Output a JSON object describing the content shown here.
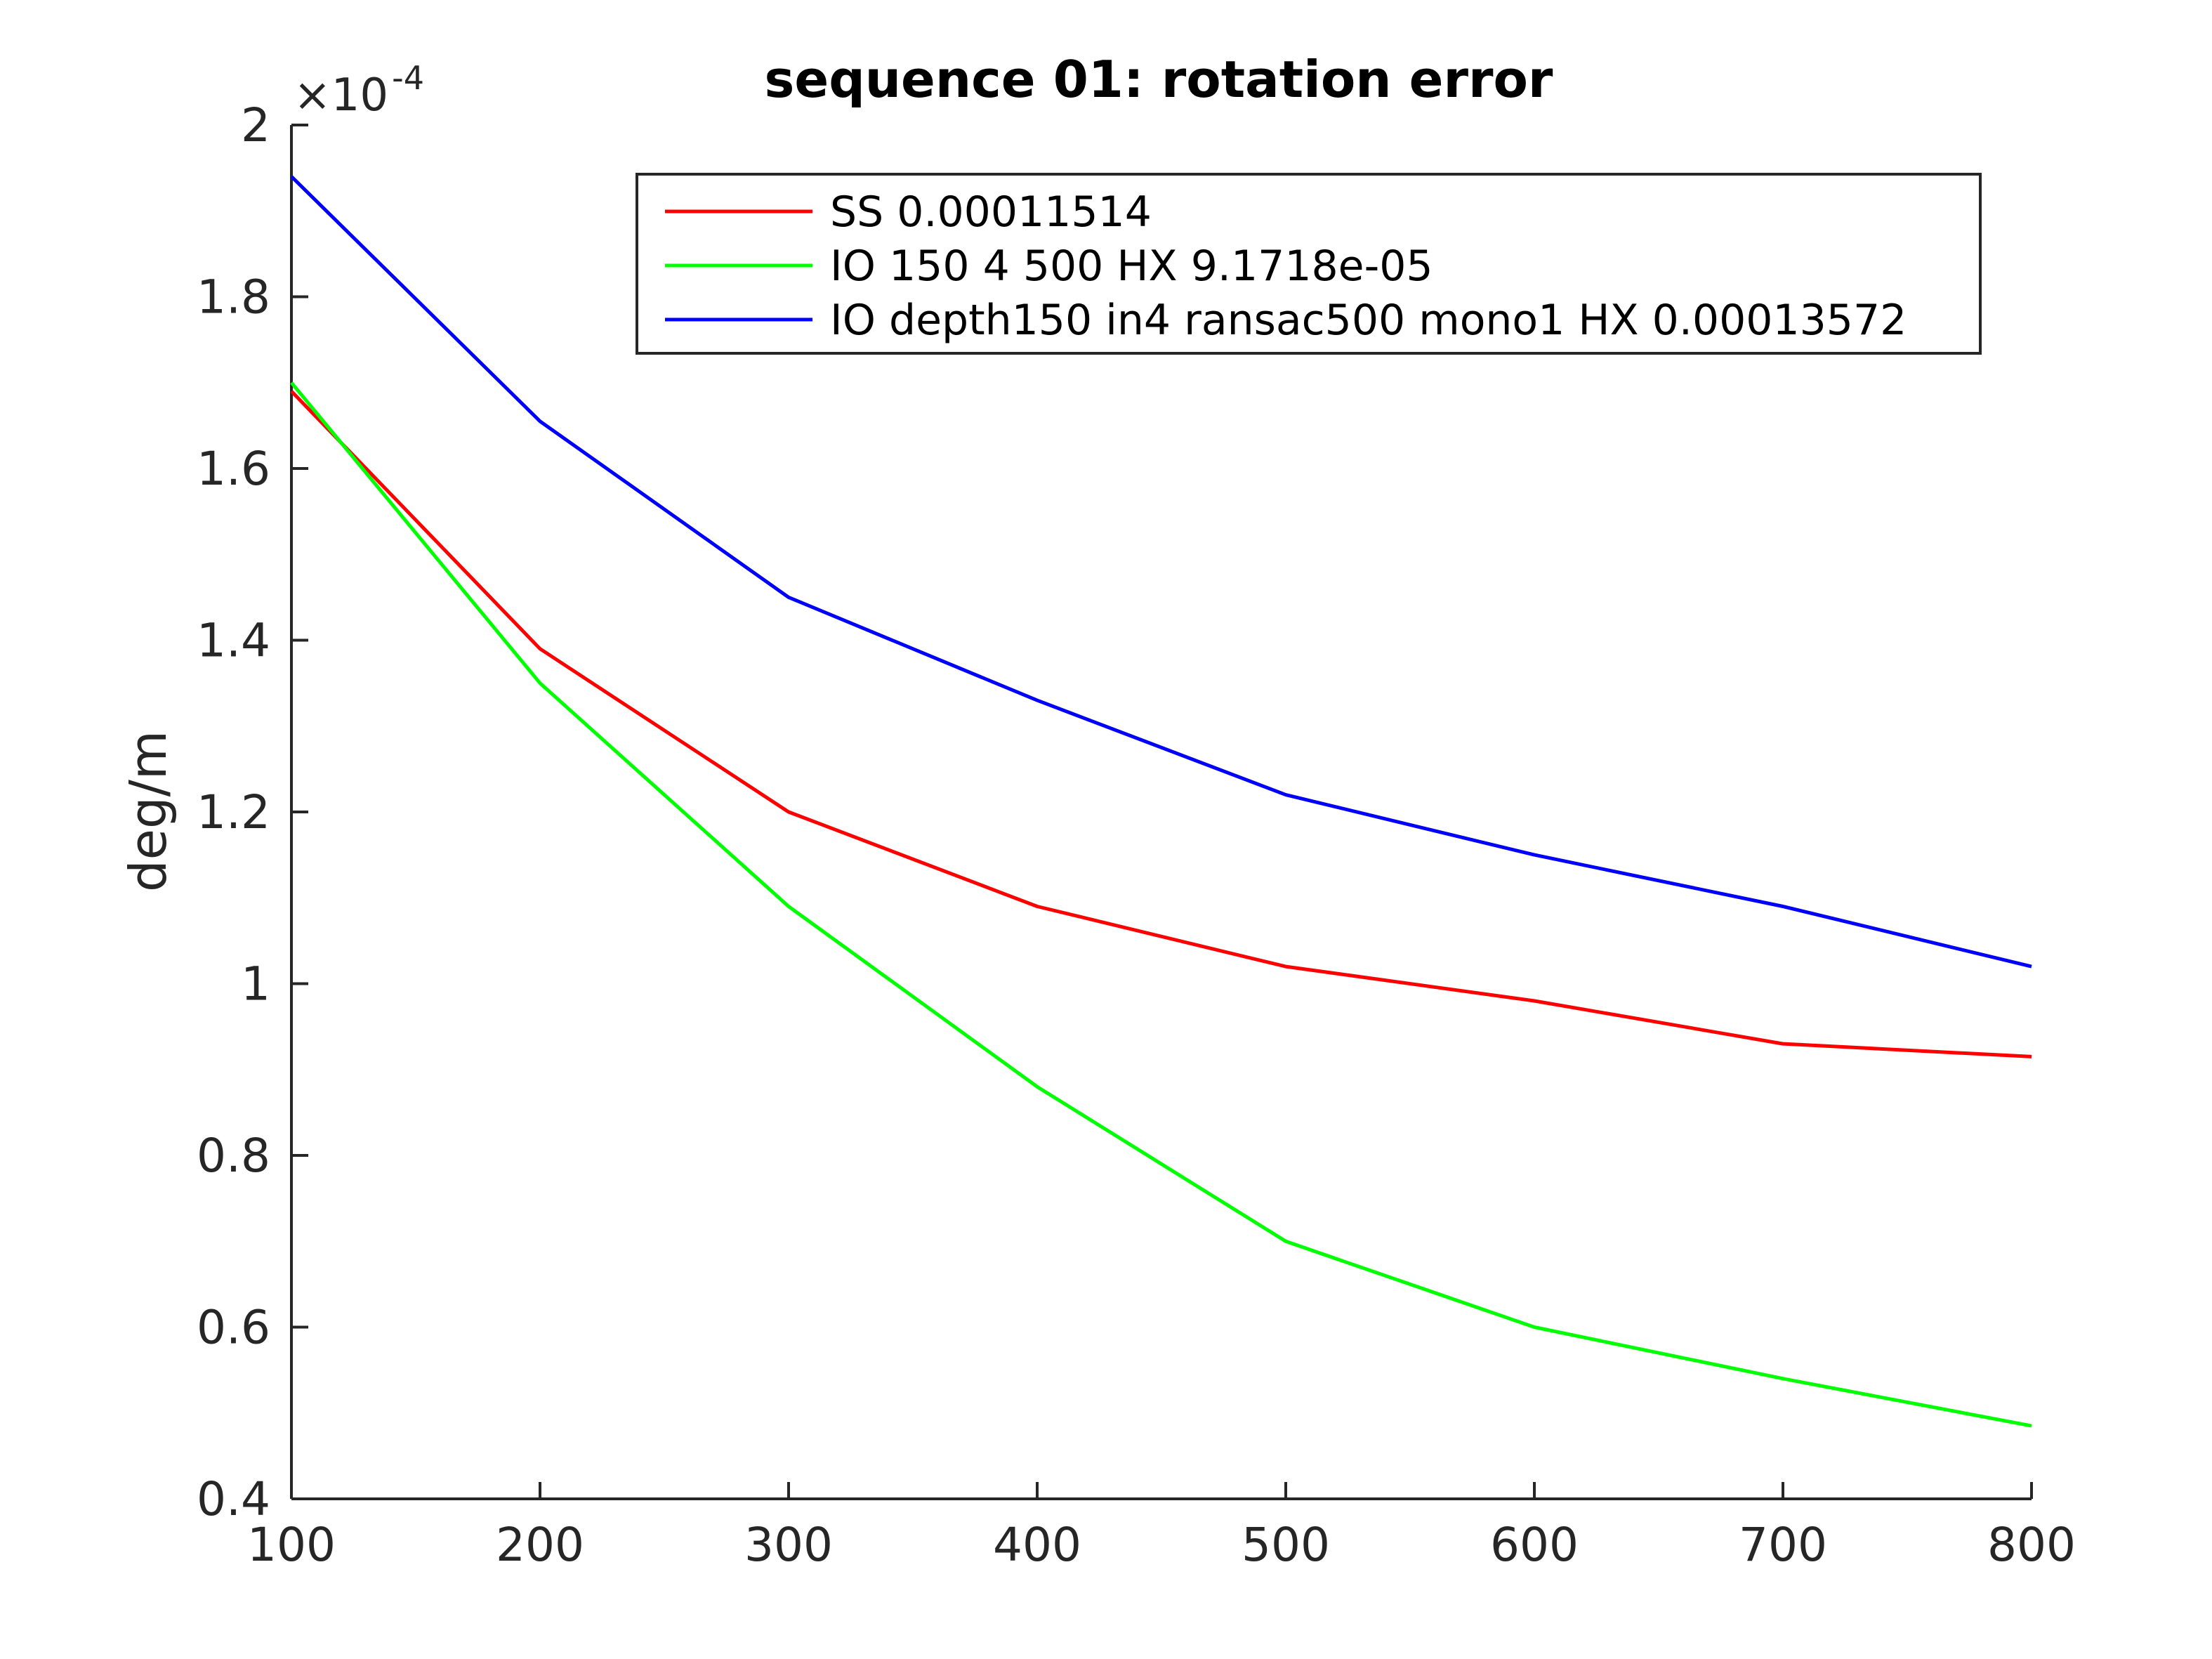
{
  "chart_data": {
    "type": "line",
    "title": "sequence 01: rotation error",
    "xlabel": "",
    "ylabel": "deg/m",
    "y_exponent": {
      "base": "×10",
      "power": "-4"
    },
    "x": [
      100,
      200,
      300,
      400,
      500,
      600,
      700,
      800
    ],
    "xlim": [
      100,
      800
    ],
    "ylim": [
      0.4,
      2.0
    ],
    "xticks": [
      100,
      200,
      300,
      400,
      500,
      600,
      700,
      800
    ],
    "xtick_labels": [
      "100",
      "200",
      "300",
      "400",
      "500",
      "600",
      "700",
      "800"
    ],
    "yticks": [
      0.4,
      0.6,
      0.8,
      1.0,
      1.2,
      1.4,
      1.6,
      1.8,
      2.0
    ],
    "ytick_labels": [
      "0.4",
      "0.6",
      "0.8",
      "1",
      "1.2",
      "1.4",
      "1.6",
      "1.8",
      "2"
    ],
    "grid": false,
    "legend_position": "top-right",
    "series": [
      {
        "name": "SS 0.00011514",
        "color": "#ff0000",
        "values": [
          1.69,
          1.39,
          1.2,
          1.09,
          1.02,
          0.98,
          0.93,
          0.915
        ]
      },
      {
        "name": "IO 150 4 500 HX 9.1718e-05",
        "color": "#00ff00",
        "values": [
          1.7,
          1.35,
          1.09,
          0.88,
          0.7,
          0.6,
          0.54,
          0.485
        ]
      },
      {
        "name": "IO depth150 in4 ransac500 mono1 HX 0.00013572",
        "color": "#0000ff",
        "values": [
          1.94,
          1.655,
          1.45,
          1.33,
          1.22,
          1.15,
          1.09,
          1.02
        ]
      }
    ]
  }
}
